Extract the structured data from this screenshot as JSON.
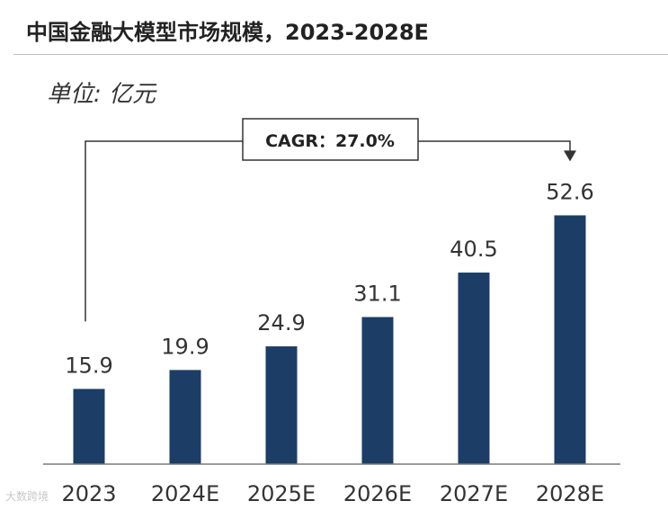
{
  "header": {
    "title": "中国金融大模型市场规模，2023-2028E"
  },
  "unit_label": "单位: 亿元",
  "watermark": "大数跨境",
  "colors": {
    "bar": "#1b3d66",
    "text": "#333333",
    "axis": "#7a7a7a",
    "connector": "#333333"
  },
  "chart_data": {
    "type": "bar",
    "title": "中国金融大模型市场规模，2023-2028E",
    "xlabel": "",
    "ylabel": "单位: 亿元",
    "categories": [
      "2023",
      "2024E",
      "2025E",
      "2026E",
      "2027E",
      "2028E"
    ],
    "values": [
      15.9,
      19.9,
      24.9,
      31.1,
      40.5,
      52.6
    ],
    "value_labels": [
      "15.9",
      "19.9",
      "24.9",
      "31.1",
      "40.5",
      "52.6"
    ],
    "ylim": [
      0,
      62
    ],
    "grid": false,
    "annotation": {
      "text": "CAGR：27.0%",
      "from": "2023",
      "to": "2028E"
    }
  }
}
